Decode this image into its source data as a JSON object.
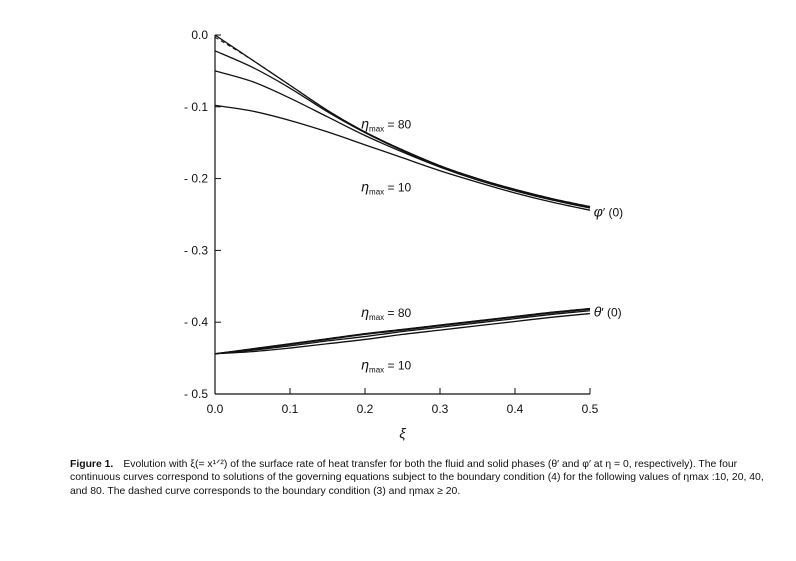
{
  "chart_data": {
    "type": "line",
    "xlabel": "ξ",
    "ylabel": "",
    "xlim": [
      0.0,
      0.5
    ],
    "ylim": [
      -0.5,
      0.0
    ],
    "x_ticks": [
      0.0,
      0.1,
      0.2,
      0.3,
      0.4,
      0.5
    ],
    "x_tick_labels": [
      "0.0",
      "0.1",
      "0.2",
      "0.3",
      "0.4",
      "0.5"
    ],
    "y_ticks": [
      0.0,
      -0.1,
      -0.2,
      -0.3,
      -0.4,
      -0.5
    ],
    "y_tick_labels": [
      "0.0",
      "- 0.1",
      "- 0.2",
      "- 0.3",
      "- 0.4",
      "- 0.5"
    ],
    "grid": false,
    "x": [
      0.0,
      0.05,
      0.1,
      0.15,
      0.2,
      0.25,
      0.3,
      0.35,
      0.4,
      0.45,
      0.5
    ],
    "series": [
      {
        "group": "phi",
        "style": "dashed",
        "values": [
          -0.003,
          -0.035,
          -0.07,
          -0.105,
          -0.135,
          -0.16,
          -0.182,
          -0.2,
          -0.215,
          -0.228,
          -0.239
        ]
      },
      {
        "group": "phi",
        "style": "solid",
        "values": [
          0.0,
          -0.035,
          -0.07,
          -0.105,
          -0.135,
          -0.16,
          -0.182,
          -0.2,
          -0.215,
          -0.228,
          -0.239
        ]
      },
      {
        "group": "phi",
        "style": "solid",
        "values": [
          -0.022,
          -0.045,
          -0.074,
          -0.107,
          -0.136,
          -0.161,
          -0.183,
          -0.2,
          -0.216,
          -0.229,
          -0.24
        ]
      },
      {
        "group": "phi",
        "style": "solid",
        "values": [
          -0.05,
          -0.065,
          -0.088,
          -0.114,
          -0.14,
          -0.163,
          -0.184,
          -0.202,
          -0.217,
          -0.23,
          -0.241
        ]
      },
      {
        "group": "phi",
        "style": "solid",
        "values": [
          -0.098,
          -0.106,
          -0.119,
          -0.135,
          -0.153,
          -0.171,
          -0.189,
          -0.205,
          -0.22,
          -0.233,
          -0.244
        ]
      },
      {
        "group": "theta",
        "style": "dashed",
        "values": [
          -0.444,
          -0.437,
          -0.43,
          -0.423,
          -0.416,
          -0.41,
          -0.404,
          -0.398,
          -0.392,
          -0.386,
          -0.381
        ]
      },
      {
        "group": "theta",
        "style": "solid",
        "values": [
          -0.444,
          -0.437,
          -0.43,
          -0.423,
          -0.416,
          -0.41,
          -0.404,
          -0.398,
          -0.392,
          -0.386,
          -0.381
        ]
      },
      {
        "group": "theta",
        "style": "solid",
        "values": [
          -0.444,
          -0.438,
          -0.431,
          -0.424,
          -0.417,
          -0.411,
          -0.405,
          -0.399,
          -0.393,
          -0.387,
          -0.382
        ]
      },
      {
        "group": "theta",
        "style": "solid",
        "values": [
          -0.444,
          -0.439,
          -0.433,
          -0.426,
          -0.42,
          -0.413,
          -0.407,
          -0.401,
          -0.395,
          -0.389,
          -0.384
        ]
      },
      {
        "group": "theta",
        "style": "solid",
        "values": [
          -0.444,
          -0.441,
          -0.436,
          -0.43,
          -0.424,
          -0.417,
          -0.411,
          -0.405,
          -0.399,
          -0.393,
          -0.388
        ]
      }
    ],
    "annotations": [
      {
        "sym": "η",
        "sub": "max",
        "text": " = 80",
        "at": [
          0.195,
          -0.13
        ]
      },
      {
        "sym": "η",
        "sub": "max",
        "text": " = 10",
        "at": [
          0.195,
          -0.218
        ]
      },
      {
        "sym": "η",
        "sub": "max",
        "text": " = 80",
        "at": [
          0.195,
          -0.393
        ]
      },
      {
        "sym": "η",
        "sub": "max",
        "text": " = 10",
        "at": [
          0.195,
          -0.466
        ]
      },
      {
        "sym": "φ",
        "sub": "",
        "text": "′ (0)",
        "at": [
          0.505,
          -0.253
        ]
      },
      {
        "sym": "θ",
        "sub": "",
        "text": "′ (0)",
        "at": [
          0.505,
          -0.392
        ]
      }
    ]
  },
  "caption": {
    "label": "Figure 1.",
    "text": "Evolution with ξ(= x¹ᐟ²) of the surface rate of heat transfer for both the fluid and solid phases (θ′ and φ′ at η = 0, respectively). The four continuous curves correspond to solutions of the governing equations subject to the boundary condition (4) for the following values of ηmax :10, 20, 40, and 80. The dashed curve corresponds to the boundary condition (3) and ηmax ≥ 20."
  }
}
